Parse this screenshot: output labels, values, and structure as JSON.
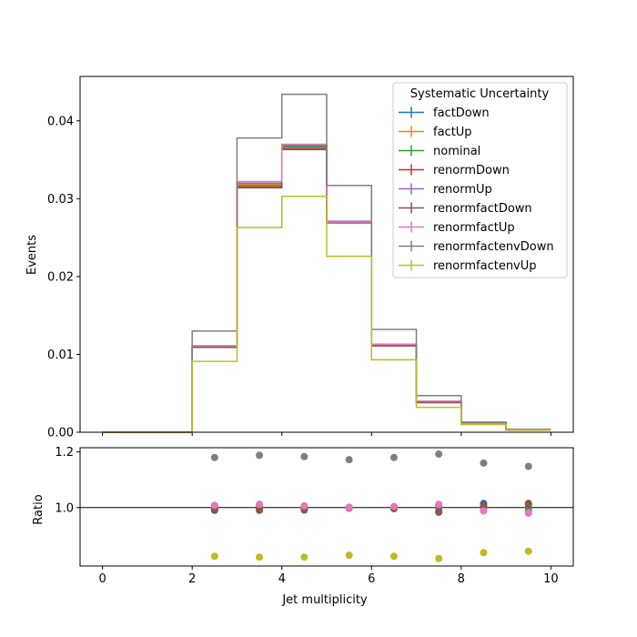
{
  "chart_data": [
    {
      "type": "line",
      "subtype": "step-histogram",
      "ylabel": "Events",
      "xlim": [
        -0.5,
        10.5
      ],
      "ylim": [
        0,
        0.0457
      ],
      "yticks": [
        "0.00",
        "0.01",
        "0.02",
        "0.03",
        "0.04"
      ],
      "bin_edges": [
        0,
        1,
        2,
        3,
        4,
        5,
        6,
        7,
        8,
        9,
        10
      ],
      "legend_title": "Systematic Uncertainty",
      "legend_position": "top-right",
      "series": [
        {
          "name": "factDown",
          "color": "#1f77b4",
          "values": [
            0,
            0,
            0.011,
            0.0317,
            0.0366,
            0.027,
            0.0112,
            0.0039,
            0.0012,
            0.0003
          ]
        },
        {
          "name": "factUp",
          "color": "#ff7f0e",
          "values": [
            0,
            0,
            0.0111,
            0.0319,
            0.0368,
            0.027,
            0.0113,
            0.004,
            0.0011,
            0.0003
          ]
        },
        {
          "name": "nominal",
          "color": "#2ca02c",
          "values": [
            0,
            0,
            0.011,
            0.0317,
            0.0367,
            0.027,
            0.0112,
            0.0039,
            0.0011,
            0.0003
          ]
        },
        {
          "name": "renormDown",
          "color": "#d62728",
          "values": [
            0,
            0,
            0.0109,
            0.0315,
            0.0364,
            0.0269,
            0.0111,
            0.0039,
            0.0011,
            0.0003
          ]
        },
        {
          "name": "renormUp",
          "color": "#9467bd",
          "values": [
            0,
            0,
            0.0111,
            0.032,
            0.0369,
            0.0271,
            0.0113,
            0.004,
            0.0011,
            0.0003
          ]
        },
        {
          "name": "renormfactDown",
          "color": "#8c564b",
          "values": [
            0,
            0,
            0.0109,
            0.0314,
            0.0363,
            0.0269,
            0.0111,
            0.0038,
            0.0011,
            0.0003
          ]
        },
        {
          "name": "renormfactUp",
          "color": "#e377c2",
          "values": [
            0,
            0,
            0.0111,
            0.0322,
            0.037,
            0.027,
            0.0113,
            0.004,
            0.0011,
            0.0003
          ]
        },
        {
          "name": "renormfactenvDown",
          "color": "#7f7f7f",
          "values": [
            0,
            0,
            0.013,
            0.0378,
            0.0434,
            0.0317,
            0.0132,
            0.0047,
            0.0013,
            0.0004
          ]
        },
        {
          "name": "renormfactenvUp",
          "color": "#bcbd22",
          "values": [
            0,
            0,
            0.0091,
            0.0263,
            0.0303,
            0.0226,
            0.0093,
            0.0032,
            0.001,
            0.0003
          ]
        }
      ]
    },
    {
      "type": "scatter",
      "xlabel": "Jet multiplicity",
      "ylabel": "Ratio",
      "xlim": [
        -0.5,
        10.5
      ],
      "ylim": [
        0.79,
        1.215
      ],
      "xticks": [
        "0",
        "2",
        "4",
        "6",
        "8",
        "10"
      ],
      "yticks": [
        "1.0",
        "1.2"
      ],
      "reference_line": 1.0,
      "x": [
        2.5,
        3.5,
        4.5,
        5.5,
        6.5,
        7.5,
        8.5,
        9.5
      ],
      "series": [
        {
          "name": "factDown",
          "color": "#1f77b4",
          "values": [
            0.99,
            0.999,
            0.998,
            1.0,
            1.0,
            1.0,
            1.015,
            1.0
          ]
        },
        {
          "name": "factUp",
          "color": "#ff7f0e",
          "values": [
            1.008,
            1.004,
            1.002,
            1.0,
            1.002,
            1.01,
            0.99,
            0.99
          ]
        },
        {
          "name": "nominal",
          "color": "#2ca02c",
          "values": [
            1.0,
            1.0,
            1.0,
            1.0,
            1.0,
            1.0,
            1.0,
            1.0
          ]
        },
        {
          "name": "renormDown",
          "color": "#d62728",
          "values": [
            0.993,
            0.993,
            0.993,
            0.998,
            0.997,
            0.985,
            1.008,
            1.012
          ]
        },
        {
          "name": "renormUp",
          "color": "#9467bd",
          "values": [
            1.005,
            1.008,
            1.005,
            1.001,
            1.003,
            1.008,
            1.0,
            0.985
          ]
        },
        {
          "name": "renormfactDown",
          "color": "#8c564b",
          "values": [
            0.995,
            0.99,
            0.991,
            0.999,
            0.996,
            0.983,
            1.005,
            1.015
          ]
        },
        {
          "name": "renormfactUp",
          "color": "#e377c2",
          "values": [
            1.008,
            1.012,
            1.006,
            1.0,
            1.004,
            1.012,
            0.988,
            0.98
          ]
        },
        {
          "name": "renormfactenvDown",
          "color": "#7f7f7f",
          "values": [
            1.18,
            1.188,
            1.183,
            1.172,
            1.18,
            1.192,
            1.16,
            1.148
          ]
        },
        {
          "name": "renormfactenvUp",
          "color": "#bcbd22",
          "values": [
            0.825,
            0.822,
            0.822,
            0.829,
            0.825,
            0.817,
            0.838,
            0.843
          ]
        }
      ]
    }
  ]
}
